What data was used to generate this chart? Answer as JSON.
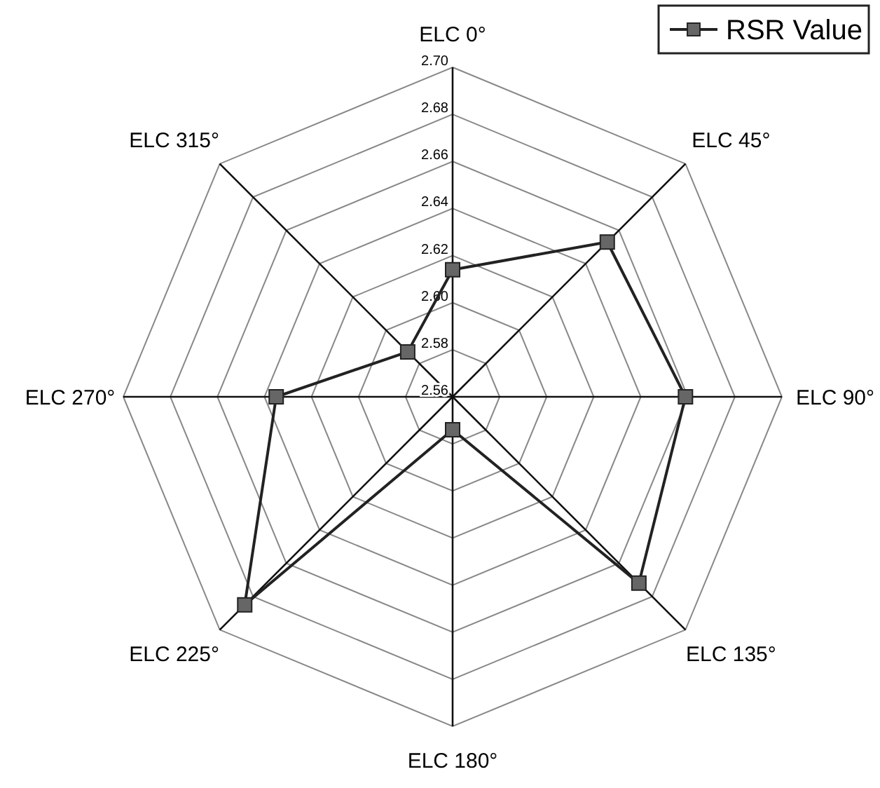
{
  "chart_data": {
    "type": "radar",
    "categories": [
      "ELC 0°",
      "ELC 45°",
      "ELC 90°",
      "ELC 135°",
      "ELC 180°",
      "ELC 225°",
      "ELC 270°",
      "ELC 315°"
    ],
    "series": [
      {
        "name": "RSR Value",
        "color": "#222222",
        "values": [
          2.614,
          2.653,
          2.659,
          2.672,
          2.574,
          2.685,
          2.635,
          2.587
        ]
      }
    ],
    "ylim": [
      2.56,
      2.7
    ],
    "yticks": [
      2.56,
      2.58,
      {
        "value": 2.6,
        "label": "2.60"
      },
      2.62,
      2.64,
      2.66,
      2.68,
      {
        "value": 2.7,
        "label": "2.70"
      }
    ],
    "legend": "top right",
    "marker": "square",
    "grid": true
  }
}
